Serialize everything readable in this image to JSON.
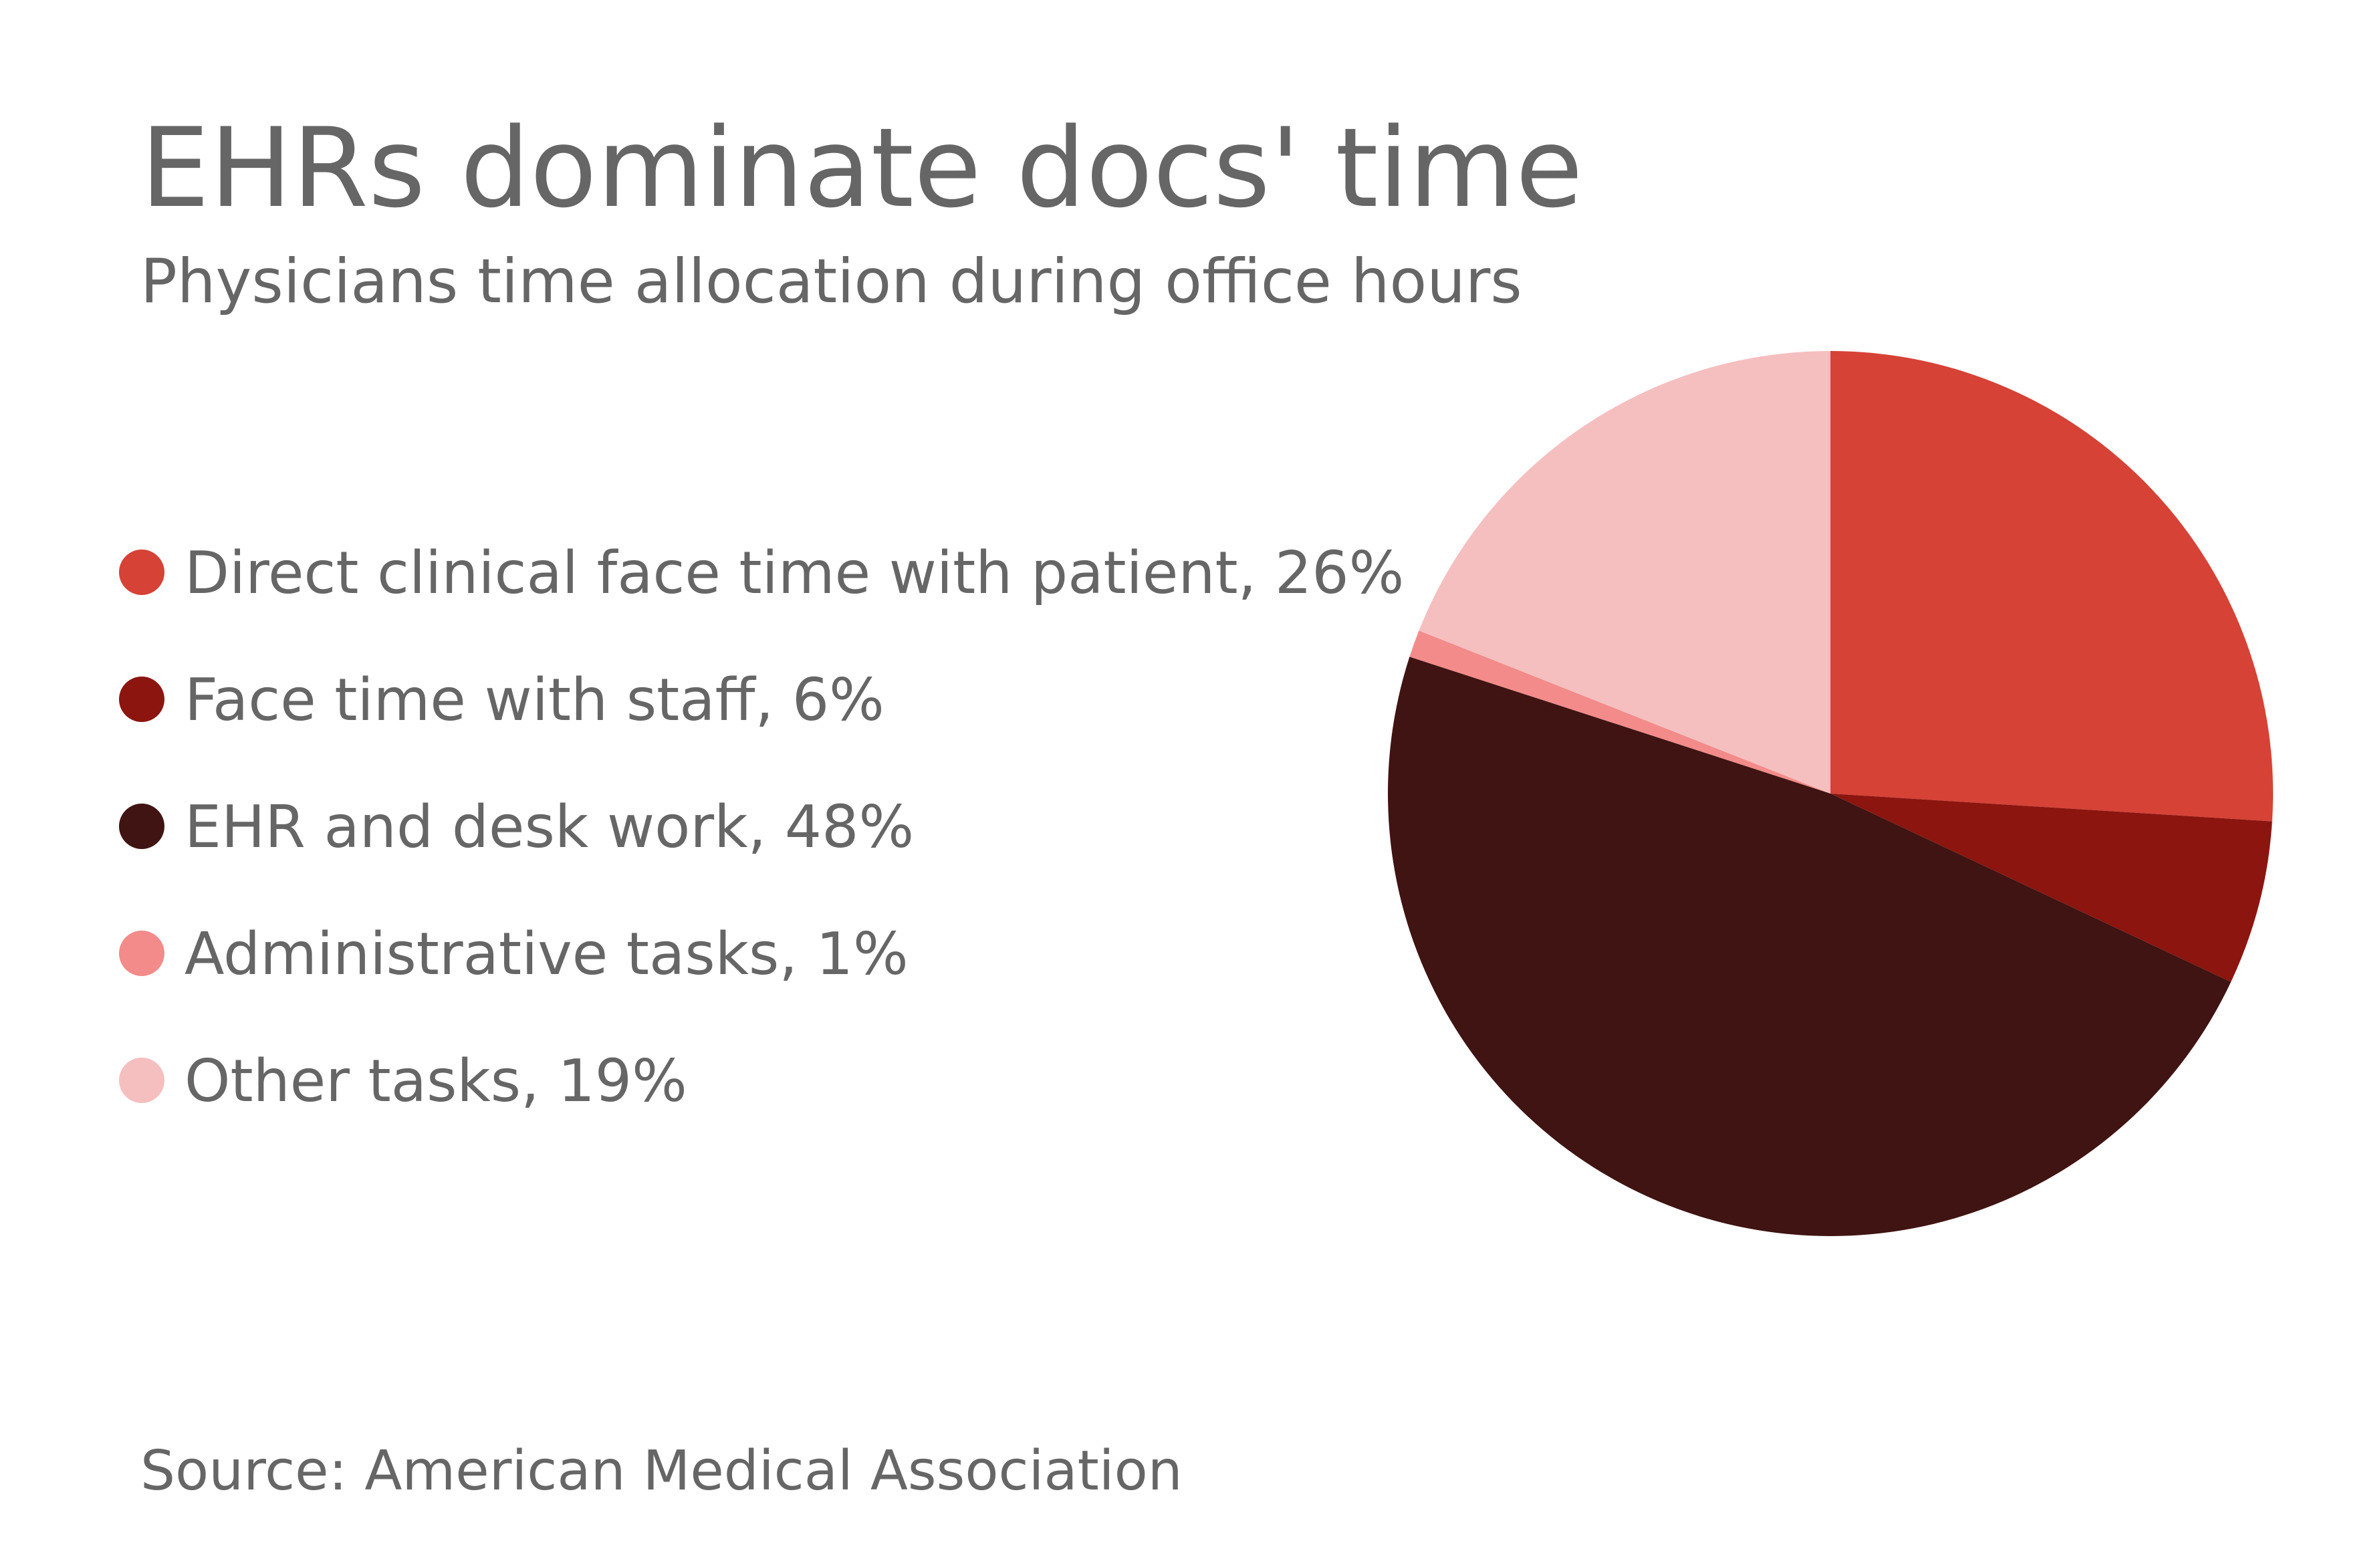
{
  "chart_data": {
    "type": "pie",
    "title": "EHRs dominate docs' time",
    "subtitle": "Physicians time allocation during office hours",
    "source": "Source: American Medical Association",
    "categories": [
      "Direct clinical face time with patient, 26%",
      "Face time with staff, 6%",
      "EHR and desk work, 48%",
      "Administrative tasks, 1%",
      "Other tasks, 19%"
    ],
    "values": [
      26,
      6,
      48,
      1,
      19
    ],
    "colors": [
      "#d64236",
      "#8c1510",
      "#3f1412",
      "#f28b8a",
      "#f6bfbf"
    ]
  }
}
